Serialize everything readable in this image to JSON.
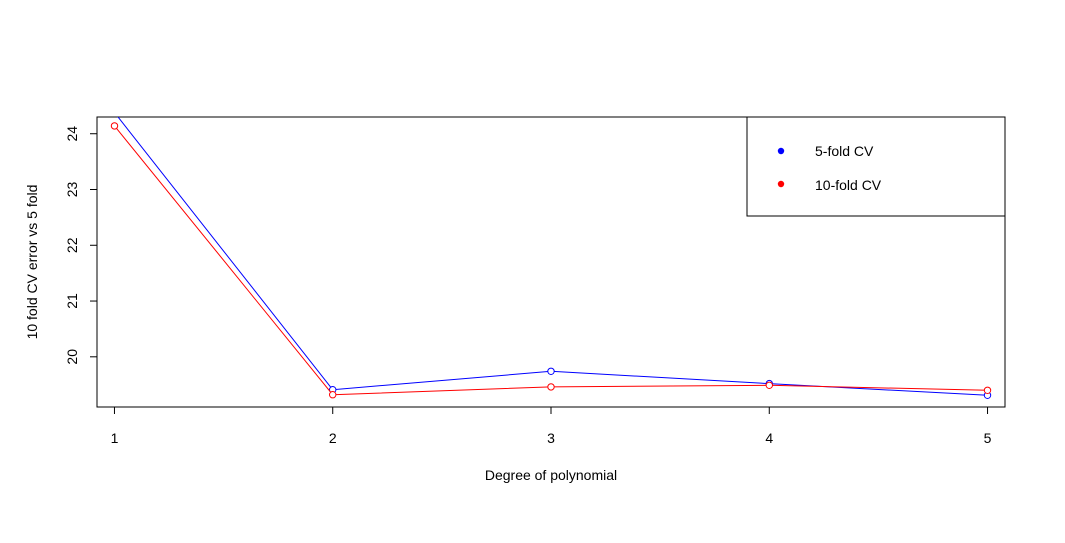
{
  "chart_data": {
    "type": "line",
    "xlabel": "Degree of polynomial",
    "ylabel": "10 fold CV error vs 5 fold",
    "x": [
      1,
      2,
      3,
      4,
      5
    ],
    "xlim": [
      0.92,
      5.08
    ],
    "ylim": [
      19.1,
      24.3
    ],
    "xticks": [
      1,
      2,
      3,
      4,
      5
    ],
    "yticks": [
      20,
      21,
      22,
      23,
      24
    ],
    "grid": false,
    "legend": "top-right",
    "series": [
      {
        "name": "5-fold CV",
        "color": "#0000ff",
        "values": [
          24.38,
          19.41,
          19.74,
          19.52,
          19.31
        ]
      },
      {
        "name": "10-fold CV",
        "color": "#ff0000",
        "values": [
          24.14,
          19.32,
          19.46,
          19.49,
          19.4
        ]
      }
    ]
  }
}
